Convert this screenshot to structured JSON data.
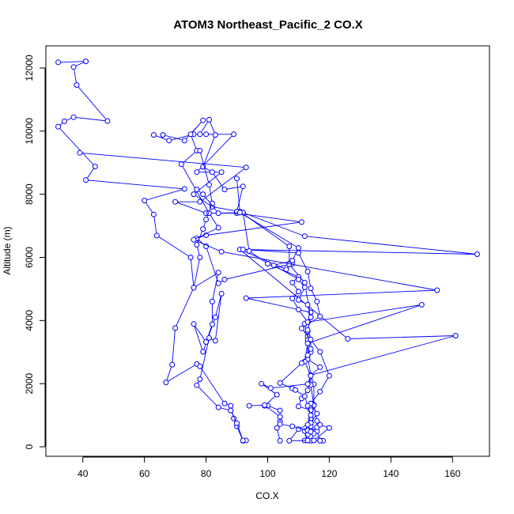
{
  "chart_data": {
    "type": "line",
    "title": "ATOM3 Northeast_Pacific_2 CO.X",
    "xlabel": "CO.X",
    "ylabel": "Altitude (m)",
    "xlim": [
      28,
      172
    ],
    "ylim": [
      -300,
      12700
    ],
    "xticks": [
      40,
      60,
      80,
      100,
      120,
      140,
      160
    ],
    "yticks": [
      0,
      2000,
      4000,
      6000,
      8000,
      10000,
      12000
    ],
    "grid": false,
    "legend": "none",
    "color": "#0000ff",
    "marker": "open-circle",
    "series": [
      {
        "values": [
          [
            32,
            12180
          ],
          [
            41,
            12210
          ],
          [
            37,
            12030
          ],
          [
            38,
            11460
          ],
          [
            48,
            10320
          ],
          [
            37,
            10440
          ],
          [
            34,
            10310
          ],
          [
            32,
            10140
          ],
          [
            44,
            8880
          ],
          [
            41,
            8450
          ],
          [
            73,
            8170
          ],
          [
            60,
            7800
          ],
          [
            63,
            7360
          ],
          [
            64,
            6690
          ],
          [
            75,
            6000
          ],
          [
            76,
            5040
          ],
          [
            70,
            3760
          ],
          [
            69,
            2600
          ],
          [
            67,
            2040
          ],
          [
            77,
            2620
          ],
          [
            78,
            2550
          ],
          [
            86,
            1370
          ],
          [
            88,
            1300
          ],
          [
            89,
            900
          ],
          [
            90,
            650
          ],
          [
            92,
            190
          ],
          [
            93,
            200
          ]
        ]
      },
      {
        "values": [
          [
            39,
            9310
          ],
          [
            93,
            8850
          ],
          [
            78,
            7760
          ],
          [
            70,
            7760
          ],
          [
            80,
            7400
          ],
          [
            90,
            7400
          ],
          [
            111,
            7120
          ],
          [
            80,
            6700
          ],
          [
            77,
            6600
          ],
          [
            80,
            6350
          ],
          [
            84,
            5180
          ],
          [
            86,
            5300
          ],
          [
            108,
            5800
          ],
          [
            106,
            5620
          ],
          [
            91,
            6250
          ],
          [
            126,
            3420
          ],
          [
            161,
            3520
          ],
          [
            114,
            2270
          ],
          [
            115,
            1980
          ],
          [
            115,
            1330
          ],
          [
            116,
            820
          ],
          [
            116,
            500
          ],
          [
            117,
            200
          ],
          [
            118,
            190
          ]
        ]
      },
      {
        "values": [
          [
            63,
            9880
          ],
          [
            68,
            9700
          ],
          [
            76,
            9900
          ],
          [
            80,
            9900
          ],
          [
            89,
            9900
          ],
          [
            77,
            8700
          ],
          [
            85,
            8700
          ],
          [
            76,
            8000
          ],
          [
            82,
            7600
          ],
          [
            91,
            7450
          ],
          [
            107,
            6350
          ],
          [
            107,
            5780
          ],
          [
            112,
            5200
          ],
          [
            114,
            4100
          ],
          [
            112,
            3900
          ],
          [
            113,
            3500
          ],
          [
            113,
            2870
          ],
          [
            114,
            2260
          ],
          [
            114,
            1960
          ],
          [
            115,
            1310
          ],
          [
            114,
            800
          ],
          [
            115,
            420
          ],
          [
            114,
            190
          ]
        ]
      },
      {
        "values": [
          [
            66,
            9880
          ],
          [
            73,
            9700
          ],
          [
            79,
            10340
          ],
          [
            75,
            9900
          ],
          [
            77,
            9380
          ],
          [
            72,
            8950
          ],
          [
            81,
            7400
          ],
          [
            84,
            6940
          ],
          [
            76,
            6560
          ],
          [
            85,
            6180
          ],
          [
            155,
            4960
          ],
          [
            93,
            4710
          ],
          [
            114,
            4260
          ],
          [
            113,
            3650
          ],
          [
            113,
            3380
          ],
          [
            114,
            3000
          ],
          [
            113,
            2770
          ],
          [
            117,
            2520
          ],
          [
            114,
            2260
          ],
          [
            113,
            1790
          ],
          [
            111,
            1530
          ],
          [
            110,
            1280
          ],
          [
            114,
            1160
          ],
          [
            114,
            900
          ],
          [
            114,
            650
          ],
          [
            113,
            380
          ],
          [
            112,
            200
          ]
        ]
      },
      {
        "values": [
          [
            78,
            9900
          ],
          [
            81,
            10360
          ],
          [
            83,
            9880
          ],
          [
            79,
            8870
          ],
          [
            82,
            8700
          ],
          [
            86,
            8150
          ],
          [
            92,
            8250
          ],
          [
            90,
            7450
          ],
          [
            92,
            7420
          ],
          [
            112,
            6670
          ],
          [
            168,
            6100
          ],
          [
            92,
            6250
          ],
          [
            110,
            6140
          ],
          [
            113,
            5550
          ],
          [
            114,
            5020
          ],
          [
            116,
            4600
          ],
          [
            117,
            4130
          ],
          [
            111,
            3750
          ],
          [
            117,
            3010
          ],
          [
            120,
            2250
          ],
          [
            117,
            1750
          ],
          [
            114,
            1370
          ],
          [
            116,
            1050
          ],
          [
            114,
            760
          ],
          [
            110,
            560
          ],
          [
            107,
            190
          ],
          [
            113,
            200
          ]
        ]
      },
      {
        "values": [
          [
            78,
            9380
          ],
          [
            81,
            8300
          ],
          [
            82,
            7710
          ],
          [
            80,
            7200
          ],
          [
            79,
            6900
          ],
          [
            77,
            6400
          ],
          [
            78,
            6000
          ],
          [
            76,
            5040
          ],
          [
            84,
            5520
          ],
          [
            82,
            4600
          ],
          [
            82,
            3880
          ],
          [
            80,
            3320
          ],
          [
            76,
            3890
          ],
          [
            79,
            3010
          ],
          [
            83,
            4100
          ],
          [
            85,
            4850
          ],
          [
            83,
            3360
          ],
          [
            81,
            3450
          ],
          [
            78,
            2140
          ],
          [
            77,
            1950
          ],
          [
            84,
            1250
          ],
          [
            88,
            1150
          ],
          [
            90,
            750
          ],
          [
            92,
            200
          ]
        ]
      },
      {
        "values": [
          [
            77,
            8150
          ],
          [
            79,
            8000
          ],
          [
            84,
            7400
          ],
          [
            92,
            7420
          ],
          [
            94,
            6200
          ],
          [
            100,
            5800
          ],
          [
            110,
            5380
          ],
          [
            108,
            5200
          ],
          [
            110,
            4920
          ],
          [
            108,
            4700
          ],
          [
            110,
            4350
          ],
          [
            113,
            3950
          ],
          [
            150,
            4500
          ],
          [
            113,
            3280
          ],
          [
            112,
            2700
          ],
          [
            114,
            2250
          ],
          [
            113,
            1990
          ],
          [
            101,
            1860
          ],
          [
            98,
            2000
          ],
          [
            103,
            1650
          ],
          [
            99,
            1300
          ],
          [
            100,
            1300
          ],
          [
            104,
            1150
          ],
          [
            104,
            800
          ],
          [
            103,
            600
          ],
          [
            104,
            190
          ]
        ]
      },
      {
        "values": [
          [
            90,
            8500
          ],
          [
            91,
            7420
          ],
          [
            110,
            6300
          ],
          [
            108,
            5900
          ],
          [
            102,
            5750
          ],
          [
            110,
            5300
          ],
          [
            112,
            5050
          ],
          [
            110,
            4650
          ],
          [
            113,
            4500
          ],
          [
            114,
            4100
          ],
          [
            113,
            3700
          ],
          [
            114,
            3400
          ],
          [
            114,
            3100
          ],
          [
            113,
            2900
          ],
          [
            111,
            2650
          ],
          [
            104,
            2020
          ],
          [
            108,
            1850
          ],
          [
            109,
            1800
          ],
          [
            112,
            1600
          ],
          [
            113,
            1300
          ],
          [
            114,
            1000
          ],
          [
            113,
            700
          ],
          [
            112,
            500
          ],
          [
            113,
            200
          ]
        ]
      },
      {
        "values": [
          [
            94,
            1300
          ],
          [
            99,
            1320
          ],
          [
            104,
            950
          ],
          [
            104,
            720
          ],
          [
            108,
            650
          ],
          [
            113,
            520
          ],
          [
            114,
            480
          ],
          [
            116,
            620
          ],
          [
            117,
            700
          ],
          [
            120,
            600
          ],
          [
            115,
            200
          ],
          [
            117,
            190
          ]
        ]
      }
    ]
  }
}
